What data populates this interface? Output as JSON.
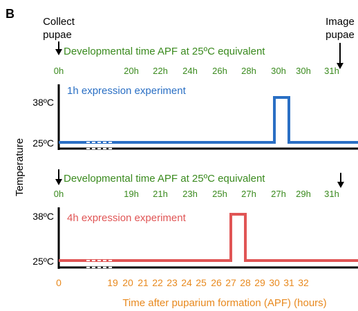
{
  "panel_label": "B",
  "colors": {
    "green": "#3a8a1e",
    "orange": "#e8891e",
    "blue": "#2a6fc4",
    "red": "#e05555",
    "axis": "#000000"
  },
  "annotations": {
    "collect_line1": "Collect",
    "collect_line2": "pupae",
    "image_line1": "Image",
    "image_line2": "pupae"
  },
  "y_axis_title": "Temperature",
  "x_axis_title": "Time after puparium formation (APF) (hours)",
  "x_ticks": [
    "0",
    "19",
    "20",
    "21",
    "22",
    "23",
    "24",
    "25",
    "26",
    "27",
    "28",
    "29",
    "30",
    "31",
    "32"
  ],
  "panels": [
    {
      "dev_time_label": "Developmental time APF at 25ºC equivalent",
      "dev_ticks": [
        "0h",
        "20h",
        "22h",
        "24h",
        "26h",
        "28h",
        "30h",
        "30h",
        "31h"
      ],
      "experiment_label": "1h expression experiment",
      "temp_high": "38ºC",
      "temp_low": "25ºC",
      "pulse_start_hours": 30,
      "pulse_end_hours": 31
    },
    {
      "dev_time_label": "Developmental time APF at 25ºC equivalent",
      "dev_ticks": [
        "0h",
        "19h",
        "21h",
        "23h",
        "25h",
        "27h",
        "27h",
        "29h",
        "31h"
      ],
      "experiment_label": "4h expression experiment",
      "temp_high": "38ºC",
      "temp_low": "25ºC",
      "pulse_start_hours": 27,
      "pulse_end_hours": 28
    }
  ]
}
